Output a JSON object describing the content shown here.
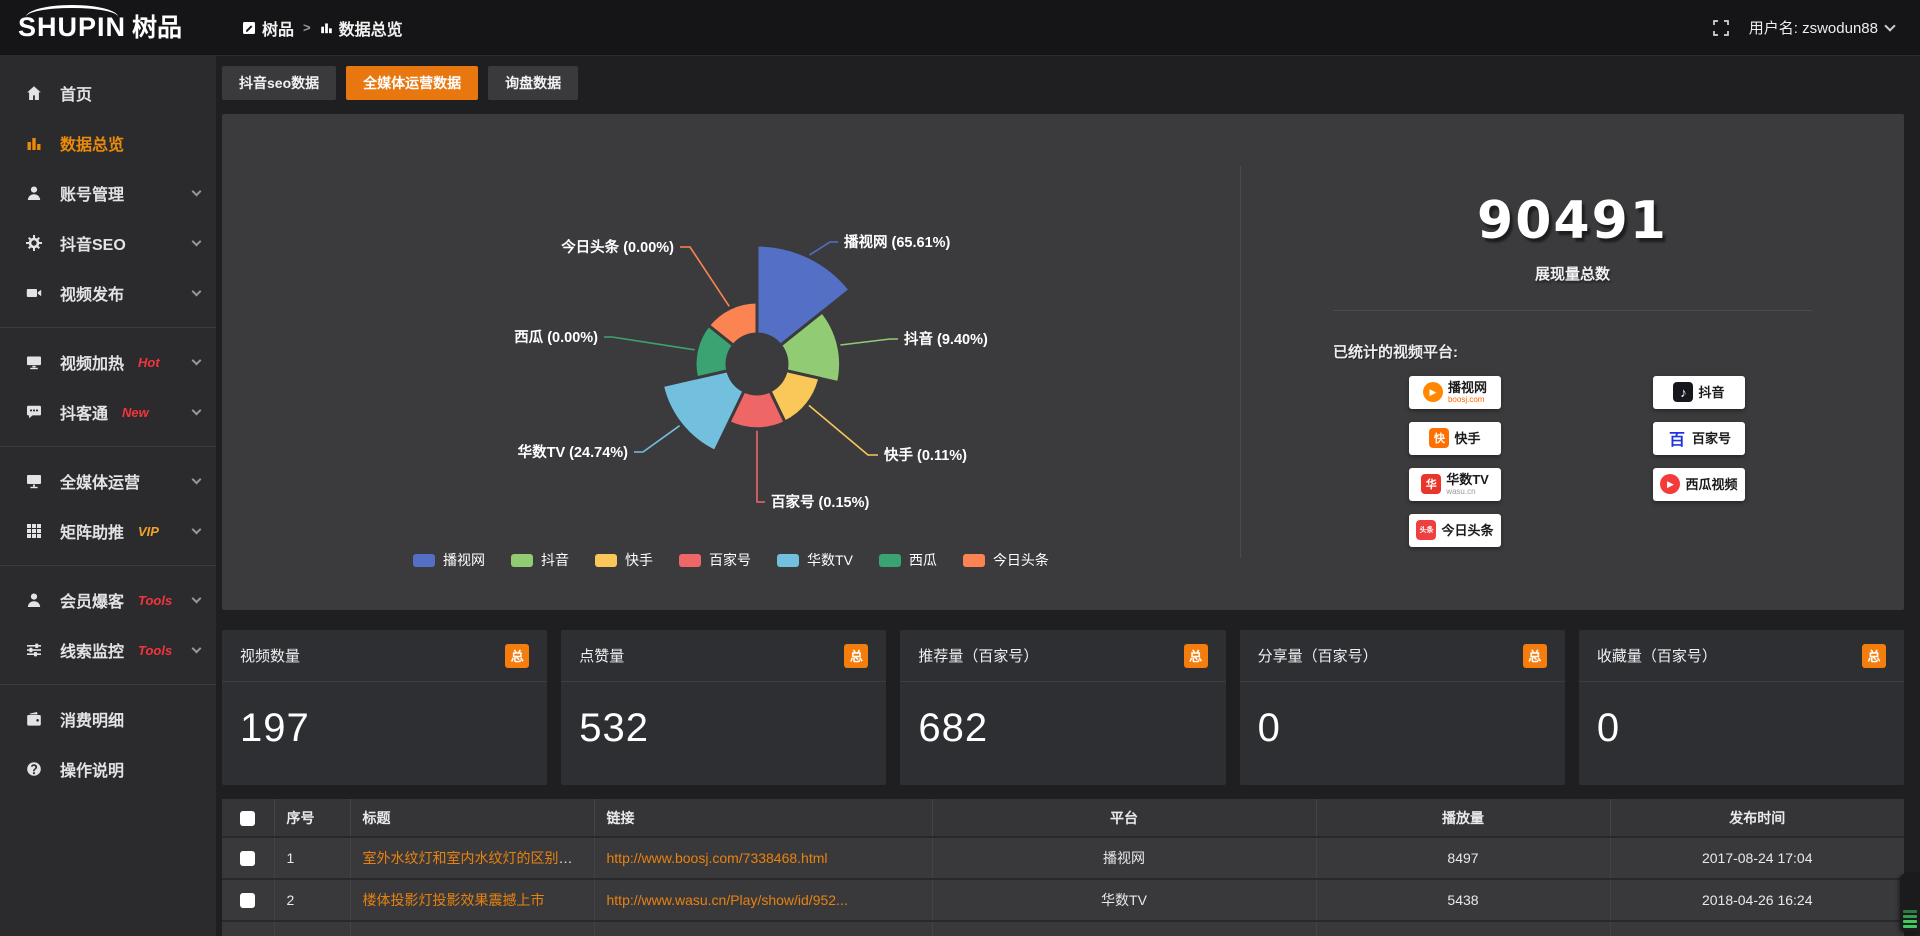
{
  "topbar": {
    "logo_text": "SHUPIN",
    "logo_suffix": "树品",
    "breadcrumb_home": "树品",
    "breadcrumb_sep": ">",
    "breadcrumb_current": "数据总览",
    "username": "用户名: zswodun88"
  },
  "sidebar": {
    "items": [
      {
        "label": "首页",
        "icon": "home"
      },
      {
        "label": "数据总览",
        "icon": "chart",
        "active": true
      },
      {
        "label": "账号管理",
        "icon": "user",
        "chevron": true
      },
      {
        "label": "抖音SEO",
        "icon": "gear",
        "chevron": true
      },
      {
        "label": "视频发布",
        "icon": "publish",
        "chevron": true,
        "divider_after": true
      },
      {
        "label": "视频加热",
        "icon": "heat",
        "badge": "Hot",
        "badge_color": "#f3343d",
        "chevron": true
      },
      {
        "label": "抖客通",
        "icon": "chat",
        "badge": "New",
        "badge_color": "#f3343d",
        "chevron": true,
        "divider_after": true
      },
      {
        "label": "全媒体运营",
        "icon": "media",
        "chevron": true
      },
      {
        "label": "矩阵助推",
        "icon": "grid",
        "badge": "VIP",
        "badge_color": "#f0a32a",
        "chevron": true,
        "divider_after": true
      },
      {
        "label": "会员爆客",
        "icon": "member",
        "badge": "Tools",
        "badge_color": "#f3343d",
        "chevron": true
      },
      {
        "label": "线索监控",
        "icon": "sliders",
        "badge": "Tools",
        "badge_color": "#f3343d",
        "chevron": true,
        "divider_after": true
      },
      {
        "label": "消费明细",
        "icon": "wallet"
      },
      {
        "label": "操作说明",
        "icon": "help"
      }
    ]
  },
  "tabs": [
    {
      "label": "抖音seo数据",
      "active": false
    },
    {
      "label": "全媒体运营数据",
      "active": true
    },
    {
      "label": "询盘数据",
      "active": false
    }
  ],
  "chart_data": {
    "type": "pie",
    "variant": "nightingale_rose",
    "labels": [
      "播视网",
      "抖音",
      "快手",
      "百家号",
      "华数TV",
      "西瓜",
      "今日头条"
    ],
    "values_percent": [
      65.61,
      9.4,
      0.11,
      0.15,
      24.74,
      0.0,
      0.0
    ],
    "colors": [
      "#5470c6",
      "#91cc75",
      "#fac858",
      "#ee6666",
      "#73c0de",
      "#3ba272",
      "#fc8452"
    ],
    "label_format": "{name} ({percent}%)",
    "legend_position": "bottom",
    "legend": [
      "播视网",
      "抖音",
      "快手",
      "百家号",
      "华数TV",
      "西瓜",
      "今日头条"
    ]
  },
  "summary": {
    "total_value": "90491",
    "total_label": "展现量总数",
    "platforms_title": "已统计的视频平台:",
    "platform_columns": [
      [
        {
          "name": "播视网",
          "sub": "boosj.com",
          "icon": "boosj"
        },
        {
          "name": "快手",
          "icon": "kuaishou"
        },
        {
          "name": "华数TV",
          "sub": "wasu.cn",
          "icon": "wasu"
        },
        {
          "name": "今日头条",
          "icon": "toutiao"
        }
      ],
      [
        {
          "name": "抖音",
          "icon": "douyin"
        },
        {
          "name": "百家号",
          "icon": "baijiahao"
        },
        {
          "name": "西瓜视频",
          "icon": "xigua"
        }
      ]
    ]
  },
  "stats": [
    {
      "title": "视频数量",
      "badge": "总",
      "value": "197"
    },
    {
      "title": "点赞量",
      "badge": "总",
      "value": "532"
    },
    {
      "title": "推荐量（百家号）",
      "badge": "总",
      "value": "682"
    },
    {
      "title": "分享量（百家号）",
      "badge": "总",
      "value": "0"
    },
    {
      "title": "收藏量（百家号）",
      "badge": "总",
      "value": "0"
    }
  ],
  "table": {
    "headers": [
      "序号",
      "标题",
      "链接",
      "平台",
      "播放量",
      "发布时间"
    ],
    "rows": [
      {
        "no": "1",
        "title": "室外水纹灯和室内水纹灯的区别和简介",
        "link": "http://www.boosj.com/7338468.html",
        "platform": "播视网",
        "views": "8497",
        "time": "2017-08-24 17:04"
      },
      {
        "no": "2",
        "title": "楼体投影灯投影效果震撼上市",
        "link": "http://www.wasu.cn/Play/show/id/952...",
        "platform": "华数TV",
        "views": "5438",
        "time": "2018-04-26 16:24"
      }
    ]
  },
  "colors": {
    "accent_orange": "#e87710",
    "link_orange": "#e8820f",
    "badge_orange": "#f57d0d",
    "panel_bg": "#3b3b3e",
    "sidebar_bg": "#2b2b2e",
    "page_bg": "#1f1f22",
    "topbar_bg": "#151517"
  }
}
